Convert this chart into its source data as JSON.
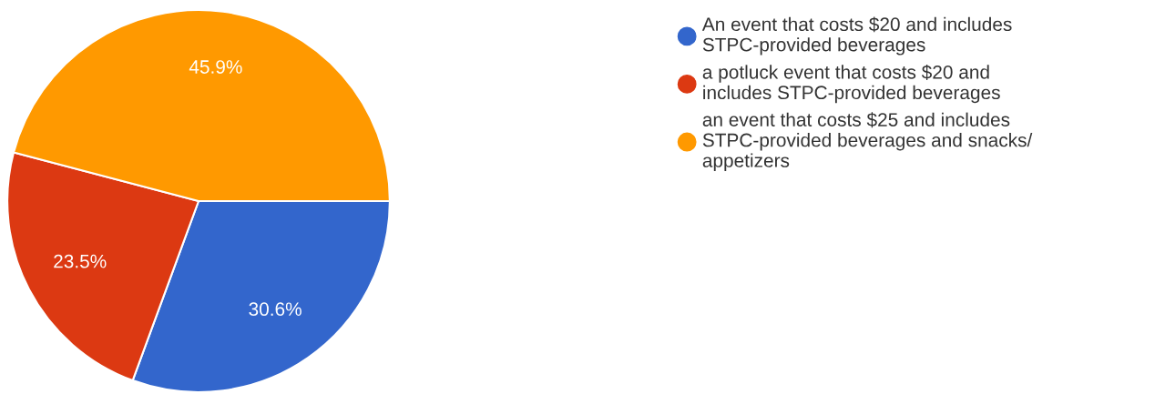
{
  "chart_data": {
    "type": "pie",
    "categories": [
      "An event that costs $20 and includes STPC-provided beverages",
      "a potluck event that costs $20 and includes STPC-provided beverages",
      "an event that costs $25 and includes STPC-provided beverages and snacks/ appetizers"
    ],
    "values": [
      30.6,
      23.5,
      45.9
    ],
    "value_labels": [
      "30.6%",
      "23.5%",
      "45.9%"
    ],
    "colors": [
      "#3366cc",
      "#dc3912",
      "#ff9900"
    ],
    "legend": "right"
  }
}
